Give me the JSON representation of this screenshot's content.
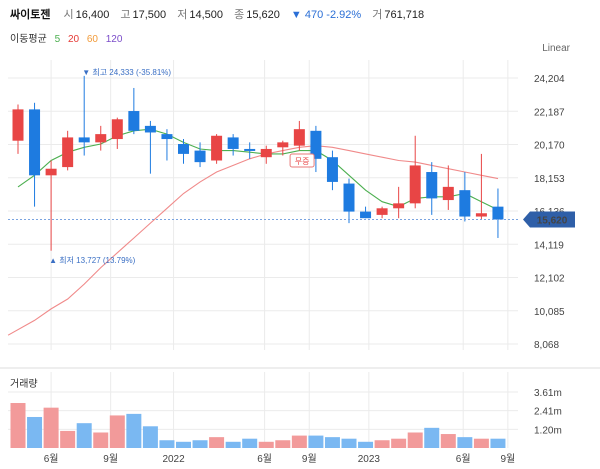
{
  "header": {
    "stock_name": "싸이토젠",
    "open_label": "시",
    "open_value": "16,400",
    "high_label": "고",
    "high_value": "17,500",
    "low_label": "저",
    "low_value": "14,500",
    "close_label": "종",
    "close_value": "15,620",
    "change": "▼ 470 -2.92%",
    "volume_label": "거",
    "volume_value": "761,718"
  },
  "ma_legend": {
    "label": "이동평균",
    "periods": [
      "5",
      "20",
      "60",
      "120"
    ],
    "colors": [
      "#4caf50",
      "#e53935",
      "#f29a38",
      "#7b4cc9"
    ]
  },
  "scale_label": "Linear",
  "volume_label": "거래량",
  "colors": {
    "up": "#e84545",
    "down": "#1e7be0",
    "vol_up": "#f29a9a",
    "vol_down": "#7ab8f2",
    "ma5": "#4caf50",
    "ma20": "#f08a8a",
    "current_tag": "#2f5fa8",
    "grid": "#ebebeb"
  },
  "chart_data": {
    "type": "candlestick",
    "y_ticks": [
      "24,204",
      "22,187",
      "20,170",
      "18,153",
      "16,136",
      "14,119",
      "12,102",
      "10,085",
      "8,068"
    ],
    "ylim": [
      8068,
      24204
    ],
    "x_tick_labels": [
      "6월",
      "9월",
      "2022",
      "6월",
      "9월",
      "2023",
      "6월",
      "9월"
    ],
    "volume_ticks": [
      "3.61m",
      "2.41m",
      "1.20m"
    ],
    "annotations": {
      "high": "▼ 최고 24,333 (-35.81%)",
      "low": "▲ 최저 13,727 (13.79%)",
      "no_dividend": "무증"
    },
    "current_price": "15,620",
    "candles": [
      {
        "o": 20400,
        "h": 22600,
        "l": 19600,
        "c": 22300,
        "v": 2.9
      },
      {
        "o": 22300,
        "h": 22700,
        "l": 16400,
        "c": 18300,
        "v": 2.0
      },
      {
        "o": 18300,
        "h": 19200,
        "l": 13727,
        "c": 18700,
        "v": 2.6
      },
      {
        "o": 18800,
        "h": 21000,
        "l": 18600,
        "c": 20600,
        "v": 1.1
      },
      {
        "o": 20600,
        "h": 24333,
        "l": 19500,
        "c": 20300,
        "v": 1.6
      },
      {
        "o": 20300,
        "h": 21300,
        "l": 19800,
        "c": 20800,
        "v": 1.0
      },
      {
        "o": 20500,
        "h": 21800,
        "l": 19900,
        "c": 21700,
        "v": 2.1
      },
      {
        "o": 22200,
        "h": 23600,
        "l": 20800,
        "c": 21000,
        "v": 2.2
      },
      {
        "o": 21300,
        "h": 21600,
        "l": 18400,
        "c": 20900,
        "v": 1.4
      },
      {
        "o": 20800,
        "h": 21100,
        "l": 19200,
        "c": 20500,
        "v": 0.5
      },
      {
        "o": 20200,
        "h": 20500,
        "l": 19000,
        "c": 19600,
        "v": 0.4
      },
      {
        "o": 19800,
        "h": 20300,
        "l": 18800,
        "c": 19100,
        "v": 0.5
      },
      {
        "o": 19200,
        "h": 20800,
        "l": 19000,
        "c": 20700,
        "v": 0.7
      },
      {
        "o": 20600,
        "h": 20800,
        "l": 19500,
        "c": 19900,
        "v": 0.4
      },
      {
        "o": 19900,
        "h": 20300,
        "l": 19300,
        "c": 19800,
        "v": 0.6
      },
      {
        "o": 19400,
        "h": 20100,
        "l": 19000,
        "c": 19900,
        "v": 0.4
      },
      {
        "o": 20000,
        "h": 20400,
        "l": 19500,
        "c": 20300,
        "v": 0.5
      },
      {
        "o": 20100,
        "h": 21600,
        "l": 19800,
        "c": 21100,
        "v": 0.8
      },
      {
        "o": 21000,
        "h": 21300,
        "l": 18500,
        "c": 19300,
        "v": 0.8
      },
      {
        "o": 19400,
        "h": 19800,
        "l": 17400,
        "c": 17900,
        "v": 0.7
      },
      {
        "o": 17800,
        "h": 18100,
        "l": 15400,
        "c": 16100,
        "v": 0.6
      },
      {
        "o": 16100,
        "h": 16400,
        "l": 15700,
        "c": 15700,
        "v": 0.4
      },
      {
        "o": 15900,
        "h": 16400,
        "l": 15700,
        "c": 16300,
        "v": 0.5
      },
      {
        "o": 16300,
        "h": 17600,
        "l": 15700,
        "c": 16600,
        "v": 0.6
      },
      {
        "o": 16600,
        "h": 20700,
        "l": 16300,
        "c": 18900,
        "v": 1.0
      },
      {
        "o": 18500,
        "h": 19100,
        "l": 15900,
        "c": 16900,
        "v": 1.3
      },
      {
        "o": 16800,
        "h": 18900,
        "l": 16200,
        "c": 17600,
        "v": 0.9
      },
      {
        "o": 17400,
        "h": 18500,
        "l": 15500,
        "c": 15800,
        "v": 0.7
      },
      {
        "o": 15800,
        "h": 19600,
        "l": 15600,
        "c": 16000,
        "v": 0.6
      },
      {
        "o": 16400,
        "h": 17500,
        "l": 14500,
        "c": 15620,
        "v": 0.6
      }
    ],
    "ma5": [
      [
        0,
        17600
      ],
      [
        1,
        18300
      ],
      [
        2,
        19200
      ],
      [
        3,
        19700
      ],
      [
        4,
        20000
      ],
      [
        5,
        20200
      ],
      [
        6,
        20700
      ],
      [
        7,
        21000
      ],
      [
        8,
        21100
      ],
      [
        9,
        20800
      ],
      [
        10,
        20300
      ],
      [
        11,
        19900
      ],
      [
        12,
        19800
      ],
      [
        13,
        19800
      ],
      [
        14,
        19700
      ],
      [
        15,
        19600
      ],
      [
        16,
        19600
      ],
      [
        17,
        19800
      ],
      [
        18,
        19800
      ],
      [
        19,
        19200
      ],
      [
        20,
        18300
      ],
      [
        21,
        17400
      ],
      [
        22,
        16700
      ],
      [
        23,
        16400
      ],
      [
        24,
        16900
      ],
      [
        25,
        17000
      ],
      [
        26,
        17000
      ],
      [
        27,
        17200
      ],
      [
        28,
        16700
      ],
      [
        29,
        16200
      ]
    ],
    "ma20": [
      [
        -0.6,
        8600
      ],
      [
        1,
        9500
      ],
      [
        2,
        10200
      ],
      [
        3,
        10800
      ],
      [
        4,
        11700
      ],
      [
        5,
        12700
      ],
      [
        6,
        13600
      ],
      [
        7,
        14500
      ],
      [
        8,
        15400
      ],
      [
        9,
        16300
      ],
      [
        10,
        17200
      ],
      [
        11,
        17900
      ],
      [
        12,
        18500
      ],
      [
        13,
        18900
      ],
      [
        14,
        19300
      ],
      [
        15,
        19600
      ],
      [
        16,
        19800
      ],
      [
        17,
        20000
      ],
      [
        18,
        20100
      ],
      [
        19,
        20000
      ],
      [
        20,
        19800
      ],
      [
        21,
        19600
      ],
      [
        22,
        19400
      ],
      [
        23,
        19200
      ],
      [
        24,
        19100
      ],
      [
        25,
        18900
      ],
      [
        26,
        18700
      ],
      [
        27,
        18500
      ],
      [
        28,
        18300
      ],
      [
        29,
        18100
      ]
    ]
  }
}
